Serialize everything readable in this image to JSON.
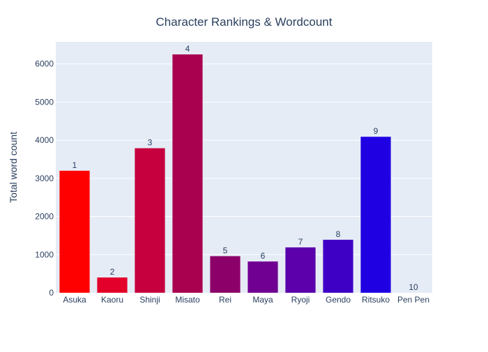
{
  "chart_data": {
    "type": "bar",
    "title": "Character Rankings & Wordcount",
    "xlabel": "",
    "ylabel": "Total word count",
    "categories": [
      "Asuka",
      "Kaoru",
      "Shinji",
      "Misato",
      "Rei",
      "Maya",
      "Ryoji",
      "Gendo",
      "Ritsuko",
      "Pen Pen"
    ],
    "values": [
      3200,
      400,
      3790,
      6250,
      960,
      820,
      1190,
      1390,
      4090,
      0
    ],
    "data_labels": [
      "1",
      "2",
      "3",
      "4",
      "5",
      "6",
      "7",
      "8",
      "9",
      "10"
    ],
    "colors": [
      "#ff0000",
      "#e3002a",
      "#c6003e",
      "#aa0050",
      "#8c006a",
      "#700092",
      "#5b00aa",
      "#3f00c6",
      "#1f00e3",
      "#0000ff"
    ],
    "ylim": [
      0,
      6580
    ],
    "yticks": [
      0,
      1000,
      2000,
      3000,
      4000,
      5000,
      6000
    ],
    "ytick_labels": [
      "0",
      "1000",
      "2000",
      "3000",
      "4000",
      "5000",
      "6000"
    ],
    "grid": true,
    "legend": "none",
    "plot_background": "#e5ecf6"
  }
}
